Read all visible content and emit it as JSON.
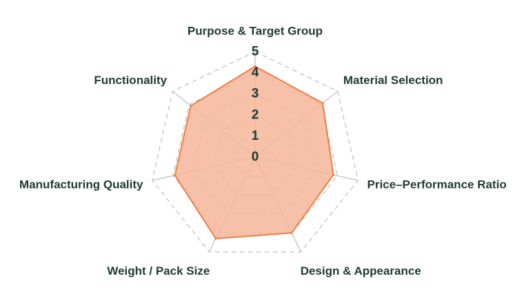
{
  "chart_data": {
    "type": "radar",
    "axes": [
      "Purpose & Target Group",
      "Material Selection",
      "Price–Performance Ratio",
      "Design & Appearance",
      "Weight / Pack Size",
      "Manufacturing Quality",
      "Functionality"
    ],
    "ticks": [
      "0",
      "1",
      "2",
      "3",
      "4",
      "5"
    ],
    "range": [
      0,
      5
    ],
    "series": [
      {
        "values": [
          4.3,
          4.1,
          3.8,
          4.0,
          4.3,
          3.9,
          3.9
        ],
        "line_color": "#ee7c45",
        "fill_color": "#f5b699"
      }
    ],
    "grid": true,
    "legend": "none"
  }
}
